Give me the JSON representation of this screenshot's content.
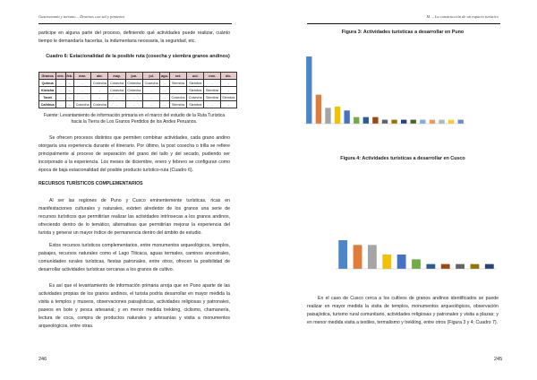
{
  "left": {
    "header": "Gastronomía y turismo – Destinos con sal y pimienta",
    "p1": "participe en alguna parte del proceso, definiendo qué actividades puede realizar, cuánto tiempo le demandaría hacerlas, la indumentaria necesaria, la seguridad, etc.",
    "table_title": "Cuadro 6: Estacionalidad de la posible ruta (cosecha y siembra granos andinos)",
    "table": {
      "headers": [
        "Granos",
        "ene.",
        "feb.",
        "mar.",
        "abr.",
        "may.",
        "jun.",
        "jul.",
        "ago.",
        "set.",
        "oct.",
        "nov.",
        "dic."
      ],
      "rows": [
        [
          "Quinua",
          "-",
          "-",
          "-",
          "Cosecha",
          "Cosecha",
          "Cosecha",
          "Cosecha",
          "-",
          "Siembra",
          "Siembra",
          "-",
          "-"
        ],
        [
          "Kiwicha",
          "-",
          "-",
          "-",
          "-",
          "Cosecha",
          "Cosecha",
          "-",
          "-",
          "-",
          "Siembra",
          "Siembra",
          "-"
        ],
        [
          "Tarwi",
          "-",
          "-",
          "-",
          "-",
          "-",
          "-",
          "-",
          "-",
          "Cosecha",
          "Cosecha",
          "Siembra",
          "Siembra"
        ],
        [
          "Cañihua",
          "-",
          "-",
          "Cosecha",
          "Cosecha",
          "-",
          "-",
          "-",
          "-",
          "Siembra",
          "Siembra",
          "-",
          "-"
        ]
      ],
      "header_color": "#e6c9c9"
    },
    "source": "Fuente: Levantamiento de información primaria en el marco del estudio de la Ruta Turística hacia la Tierra de Los Granos Perdidos de los Andes Peruanos.",
    "p2": "Se ofrecen procesos distintos que permiten combinar actividades, cada grano andino otorgaría una experiencia durante el itinerario. Por último, la post cosecha o trilla se refiere principalmente al proceso de separación del grano del tallo y del secado, pudiendo ser incorporado a la experiencia. Los meses de diciembre, enero y febrero se configuran como época de baja estacionalidad del posible producto turístico-ruta (Cuadro 6).",
    "heading": "RECURSOS TURÍSTICOS COMPLEMENTARIOS",
    "p3": "Al ser las regiones de Puno y Cusco eminentemente turísticas, ricas en manifestaciones culturales y naturales, existen alrededor de los granos una serie de recursos turísticos que permitirían realizar las actividades intrínsecas a los granos andinos, ofreciendo dentro de lo temático, alternativas que permitirían mejorar la experiencia del turista y generar un mayor índice de permanencia dentro del ámbito de estudio.",
    "p4": "Estos recursos turísticos complementarios, entre monumentos arqueológicos, templos, paisajes, recursos naturales como el Lago Titicaca, aguas termales, caminos ancestrales, comunidades rurales turísticas, fiestas patronales, entre otros, ofrecen la posibilidad de desarrollar actividades turísticas cercanas a los granos de cultivo.",
    "p5": "Es así que el levantamiento de información primaria arroja que en Puno aparte de las actividades propias de los granos andinos, el turista podría desarrollar en mayor medida la visita a templos y museos, observaciones paisajísticas, actividades religiosas y patronales, paseos en bote y pesca artesanal; y en menor medida trekking, ciclismo, chamanería, lectura de coca, compra de productos naturales y artesanías y visita a monumentos arqueológicos, entre otras.",
    "page_number": "246"
  },
  "right": {
    "header": "M. – La construcción de un espacio turístico",
    "fig3_title": "Figura 3: Actividades turísticas a desarrollar en Puno",
    "fig4_title": "Figura 4: Actividades turísticas a desarrollar en Cusco",
    "p1": "En el caso de Cusco cerca a los cultivos de granos andinos identificados se puede realizar en mayor medida la visita de templos, monumentos arqueológicos, observación paisajística, turismo rural comunitario, actividades religiosas y patronales y visita a plazas; y en menor medida visita a textiles, termalismo y trekking, entre otros (Figura 3 y 4; Cuadro 7).",
    "page_number": "245"
  },
  "chart_data": [
    {
      "type": "bar",
      "values": [
        51,
        22,
        12,
        13,
        10,
        5,
        5,
        5,
        3,
        3,
        3,
        3,
        3,
        3,
        3,
        3,
        3
      ],
      "colors": [
        "#4a86c8",
        "#e07b39",
        "#a5a5a5",
        "#f2c200",
        "#4472c4",
        "#70ad47",
        "#255e91",
        "#9e480e",
        "#636363",
        "#997300",
        "#264478",
        "#43682b",
        "#7cafdd",
        "#f1975a",
        "#b7b7b7",
        "#ffcd33",
        "#698ed0"
      ]
    },
    {
      "type": "bar",
      "values": [
        24,
        20,
        20,
        12,
        12,
        8,
        4,
        4,
        4,
        4,
        4
      ],
      "colors": [
        "#4a86c8",
        "#e07b39",
        "#a5a5a5",
        "#f2c200",
        "#4472c4",
        "#70ad47",
        "#255e91",
        "#9e480e",
        "#636363",
        "#997300",
        "#264478"
      ]
    }
  ]
}
